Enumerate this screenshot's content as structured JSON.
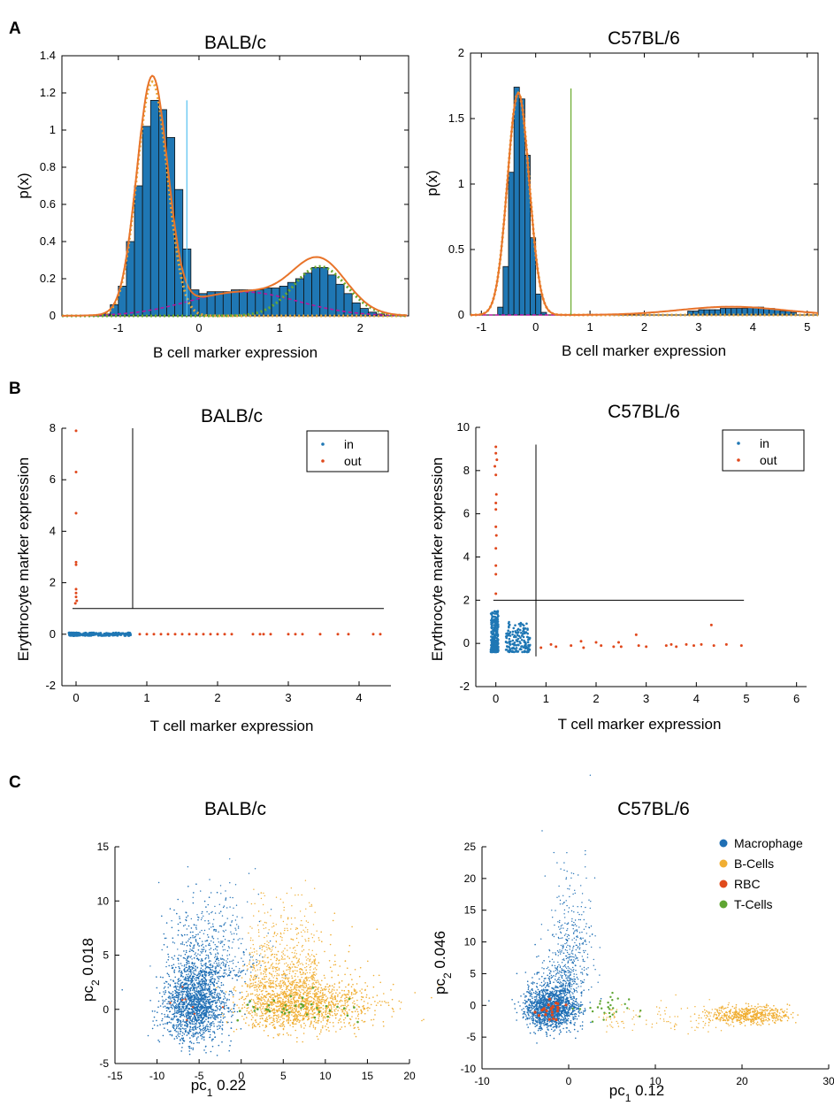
{
  "panels": {
    "A": "A",
    "B": "B",
    "C": "C"
  },
  "colors": {
    "bar": "#1f77b4",
    "fit": "#e8742a",
    "dotted": "#e8a838",
    "magenta": "#b5179e",
    "green": "#6aaa2d",
    "cyan": "#56c1f0",
    "in": "#1f77b4",
    "out": "#e0481c",
    "macrophage": "#1f6fb5",
    "bcells": "#f0ae33",
    "rbc": "#e04a1c",
    "tcells": "#5ea532"
  },
  "chart_data": [
    {
      "id": "A1",
      "type": "bar",
      "title": "BALB/c",
      "xlabel": "B cell marker expression",
      "ylabel": "p(x)",
      "xlim": [
        -1.7,
        2.6
      ],
      "ylim": [
        0,
        1.4
      ],
      "xticks": [
        -1,
        0,
        1,
        2
      ],
      "yticks": [
        0,
        0.2,
        0.4,
        0.6,
        0.8,
        1,
        1.2,
        1.4
      ],
      "bin_width": 0.1,
      "bin_starts": [
        -1.6,
        -1.5,
        -1.4,
        -1.3,
        -1.2,
        -1.1,
        -1.0,
        -0.9,
        -0.8,
        -0.7,
        -0.6,
        -0.5,
        -0.4,
        -0.3,
        -0.2,
        -0.1,
        0.0,
        0.1,
        0.2,
        0.3,
        0.4,
        0.5,
        0.6,
        0.7,
        0.8,
        0.9,
        1.0,
        1.1,
        1.2,
        1.3,
        1.4,
        1.5,
        1.6,
        1.7,
        1.8,
        1.9,
        2.0,
        2.1,
        2.2,
        2.3
      ],
      "values": [
        0.0,
        0.0,
        0.0,
        0.0,
        0.01,
        0.06,
        0.16,
        0.4,
        0.7,
        1.02,
        1.16,
        1.11,
        0.96,
        0.68,
        0.36,
        0.14,
        0.12,
        0.13,
        0.13,
        0.13,
        0.14,
        0.14,
        0.14,
        0.14,
        0.15,
        0.15,
        0.16,
        0.18,
        0.2,
        0.23,
        0.26,
        0.26,
        0.22,
        0.17,
        0.12,
        0.07,
        0.04,
        0.02,
        0.01,
        0.0
      ],
      "threshold": {
        "x": -0.15,
        "ymax": 1.16,
        "color": "cyan"
      },
      "components": [
        {
          "mu": -0.58,
          "sigma": 0.19,
          "w": 0.6,
          "color": "dotted",
          "style": "dotted"
        },
        {
          "mu": 0.55,
          "sigma": 0.68,
          "w": 0.22,
          "color": "magenta",
          "style": "dashed"
        },
        {
          "mu": 1.5,
          "sigma": 0.33,
          "w": 0.22,
          "color": "green",
          "style": "dotted"
        }
      ]
    },
    {
      "id": "A2",
      "type": "bar",
      "title": "C57BL/6",
      "xlabel": "B cell marker expression",
      "ylabel": "p(x)",
      "xlim": [
        -1.2,
        5.2
      ],
      "ylim": [
        0,
        2
      ],
      "xticks": [
        -1,
        0,
        1,
        2,
        3,
        4,
        5
      ],
      "yticks": [
        0,
        0.5,
        1,
        1.5,
        2
      ],
      "bin_width": 0.1,
      "bin_starts": [
        -0.7,
        -0.6,
        -0.5,
        -0.4,
        -0.3,
        -0.2,
        -0.1,
        0.0,
        0.1,
        2.8,
        2.9,
        3.0,
        3.1,
        3.2,
        3.3,
        3.4,
        3.5,
        3.6,
        3.7,
        3.8,
        3.9,
        4.0,
        4.1,
        4.2,
        4.3,
        4.4,
        4.5,
        4.6,
        4.7
      ],
      "values": [
        0.06,
        0.37,
        1.09,
        1.74,
        1.65,
        1.22,
        0.59,
        0.16,
        0.02,
        0.03,
        0.03,
        0.04,
        0.04,
        0.04,
        0.04,
        0.05,
        0.05,
        0.05,
        0.05,
        0.05,
        0.06,
        0.06,
        0.06,
        0.05,
        0.05,
        0.04,
        0.03,
        0.03,
        0.02
      ],
      "threshold": {
        "x": 0.65,
        "ymax": 1.73,
        "color": "green"
      },
      "components": [
        {
          "mu": -0.32,
          "sigma": 0.2,
          "w": 0.85,
          "color": "dotted",
          "style": "dotted"
        },
        {
          "mu": 3.6,
          "sigma": 0.95,
          "w": 0.15,
          "color": "magenta",
          "style": "dashed"
        }
      ]
    },
    {
      "id": "B1",
      "type": "scatter",
      "title": "BALB/c",
      "xlabel": "T cell marker expression",
      "ylabel": "Erythrocyte marker expression",
      "xlim": [
        -0.2,
        4.45
      ],
      "ylim": [
        -2,
        8
      ],
      "xticks": [
        0,
        1,
        2,
        3,
        4
      ],
      "yticks": [
        -2,
        0,
        2,
        4,
        6,
        8
      ],
      "legend": {
        "position": "top-right",
        "entries": [
          {
            "label": "in",
            "color": "in"
          },
          {
            "label": "out",
            "color": "out"
          }
        ]
      },
      "gate": {
        "vx": 0.8,
        "vy": [
          1.0,
          8.0
        ],
        "hy": 1.0,
        "hx": [
          -0.05,
          4.35
        ]
      },
      "out_points": [
        [
          0.0,
          7.9
        ],
        [
          0.0,
          6.3
        ],
        [
          0.0,
          4.7
        ],
        [
          0.0,
          2.8
        ],
        [
          0.0,
          2.7
        ],
        [
          0.0,
          1.75
        ],
        [
          0.0,
          1.6
        ],
        [
          0.0,
          1.45
        ],
        [
          0.01,
          1.3
        ],
        [
          -0.01,
          1.2
        ],
        [
          0.9,
          0
        ],
        [
          1.0,
          0
        ],
        [
          1.1,
          0
        ],
        [
          1.2,
          0
        ],
        [
          1.3,
          0
        ],
        [
          1.4,
          0
        ],
        [
          1.5,
          0
        ],
        [
          1.6,
          0
        ],
        [
          1.7,
          0
        ],
        [
          1.8,
          0
        ],
        [
          1.9,
          0
        ],
        [
          2.0,
          0
        ],
        [
          2.1,
          0
        ],
        [
          2.2,
          0
        ],
        [
          2.5,
          0
        ],
        [
          2.6,
          0
        ],
        [
          2.65,
          0
        ],
        [
          2.75,
          0
        ],
        [
          3.0,
          0
        ],
        [
          3.1,
          0
        ],
        [
          3.2,
          0
        ],
        [
          3.45,
          0
        ],
        [
          3.7,
          0
        ],
        [
          3.85,
          0
        ],
        [
          4.2,
          0
        ],
        [
          4.3,
          0
        ]
      ],
      "in_range": {
        "x": [
          -0.1,
          0.78
        ],
        "y": [
          -0.05,
          0.05
        ]
      }
    },
    {
      "id": "B2",
      "type": "scatter",
      "title": "C57BL/6",
      "xlabel": "T cell marker expression",
      "ylabel": "Erythrocyte marker expression",
      "xlim": [
        -0.4,
        6.2
      ],
      "ylim": [
        -2,
        10
      ],
      "xticks": [
        0,
        1,
        2,
        3,
        4,
        5,
        6
      ],
      "yticks": [
        -2,
        0,
        2,
        4,
        6,
        8,
        10
      ],
      "legend": {
        "position": "top-right",
        "entries": [
          {
            "label": "in",
            "color": "in"
          },
          {
            "label": "out",
            "color": "out"
          }
        ]
      },
      "gate": {
        "vx": 0.8,
        "vy": [
          -0.6,
          9.2
        ],
        "hy": 2.0,
        "hx": [
          -0.05,
          4.95
        ]
      },
      "out_points": [
        [
          0.0,
          9.1
        ],
        [
          0.0,
          8.8
        ],
        [
          0.02,
          8.5
        ],
        [
          -0.02,
          8.2
        ],
        [
          0.0,
          7.8
        ],
        [
          0.01,
          6.9
        ],
        [
          0.0,
          6.5
        ],
        [
          0.0,
          6.2
        ],
        [
          0.0,
          5.4
        ],
        [
          0.01,
          5.0
        ],
        [
          0.0,
          4.4
        ],
        [
          0.0,
          3.6
        ],
        [
          0.0,
          3.2
        ],
        [
          0.0,
          2.3
        ],
        [
          0.9,
          -0.2
        ],
        [
          1.1,
          -0.05
        ],
        [
          1.2,
          -0.15
        ],
        [
          1.5,
          -0.1
        ],
        [
          1.7,
          0.1
        ],
        [
          1.75,
          -0.2
        ],
        [
          2.0,
          0.05
        ],
        [
          2.1,
          -0.1
        ],
        [
          2.35,
          -0.15
        ],
        [
          2.45,
          0.05
        ],
        [
          2.5,
          -0.15
        ],
        [
          2.8,
          0.4
        ],
        [
          2.85,
          -0.1
        ],
        [
          3.0,
          -0.15
        ],
        [
          3.4,
          -0.1
        ],
        [
          3.5,
          -0.05
        ],
        [
          3.6,
          -0.15
        ],
        [
          3.8,
          -0.05
        ],
        [
          3.95,
          -0.1
        ],
        [
          4.1,
          -0.05
        ],
        [
          4.3,
          0.85
        ],
        [
          4.35,
          -0.1
        ],
        [
          4.6,
          -0.05
        ],
        [
          4.9,
          -0.1
        ]
      ],
      "in_clusters": [
        {
          "x": [
            -0.1,
            0.05
          ],
          "y": [
            -0.4,
            1.5
          ]
        },
        {
          "x": [
            0.2,
            0.7
          ],
          "y": [
            -0.4,
            1.0
          ]
        }
      ]
    },
    {
      "id": "C1",
      "type": "scatter",
      "title": "BALB/c",
      "xlabel": "pc1 0.22",
      "ylabel": "pc2 0.018",
      "xlim": [
        -15,
        20
      ],
      "ylim": [
        -5,
        15
      ],
      "xticks": [
        -15,
        -10,
        -5,
        0,
        5,
        10,
        15,
        20
      ],
      "yticks": [
        -5,
        0,
        5,
        10,
        15
      ],
      "groups": [
        "Macrophage",
        "B-Cells",
        "RBC",
        "T-Cells"
      ]
    },
    {
      "id": "C2",
      "type": "scatter",
      "title": "C57BL/6",
      "xlabel": "pc1 0.12",
      "ylabel": "pc2 0.046",
      "xlim": [
        -10,
        30
      ],
      "ylim": [
        -10,
        25
      ],
      "xticks": [
        -10,
        0,
        10,
        20,
        30
      ],
      "yticks": [
        -10,
        -5,
        0,
        5,
        10,
        15,
        20,
        25
      ],
      "legend": {
        "position": "top-right",
        "entries": [
          {
            "label": "Macrophage",
            "color": "macrophage"
          },
          {
            "label": "B-Cells",
            "color": "bcells"
          },
          {
            "label": "RBC",
            "color": "rbc"
          },
          {
            "label": "T-Cells",
            "color": "tcells"
          }
        ]
      }
    }
  ]
}
